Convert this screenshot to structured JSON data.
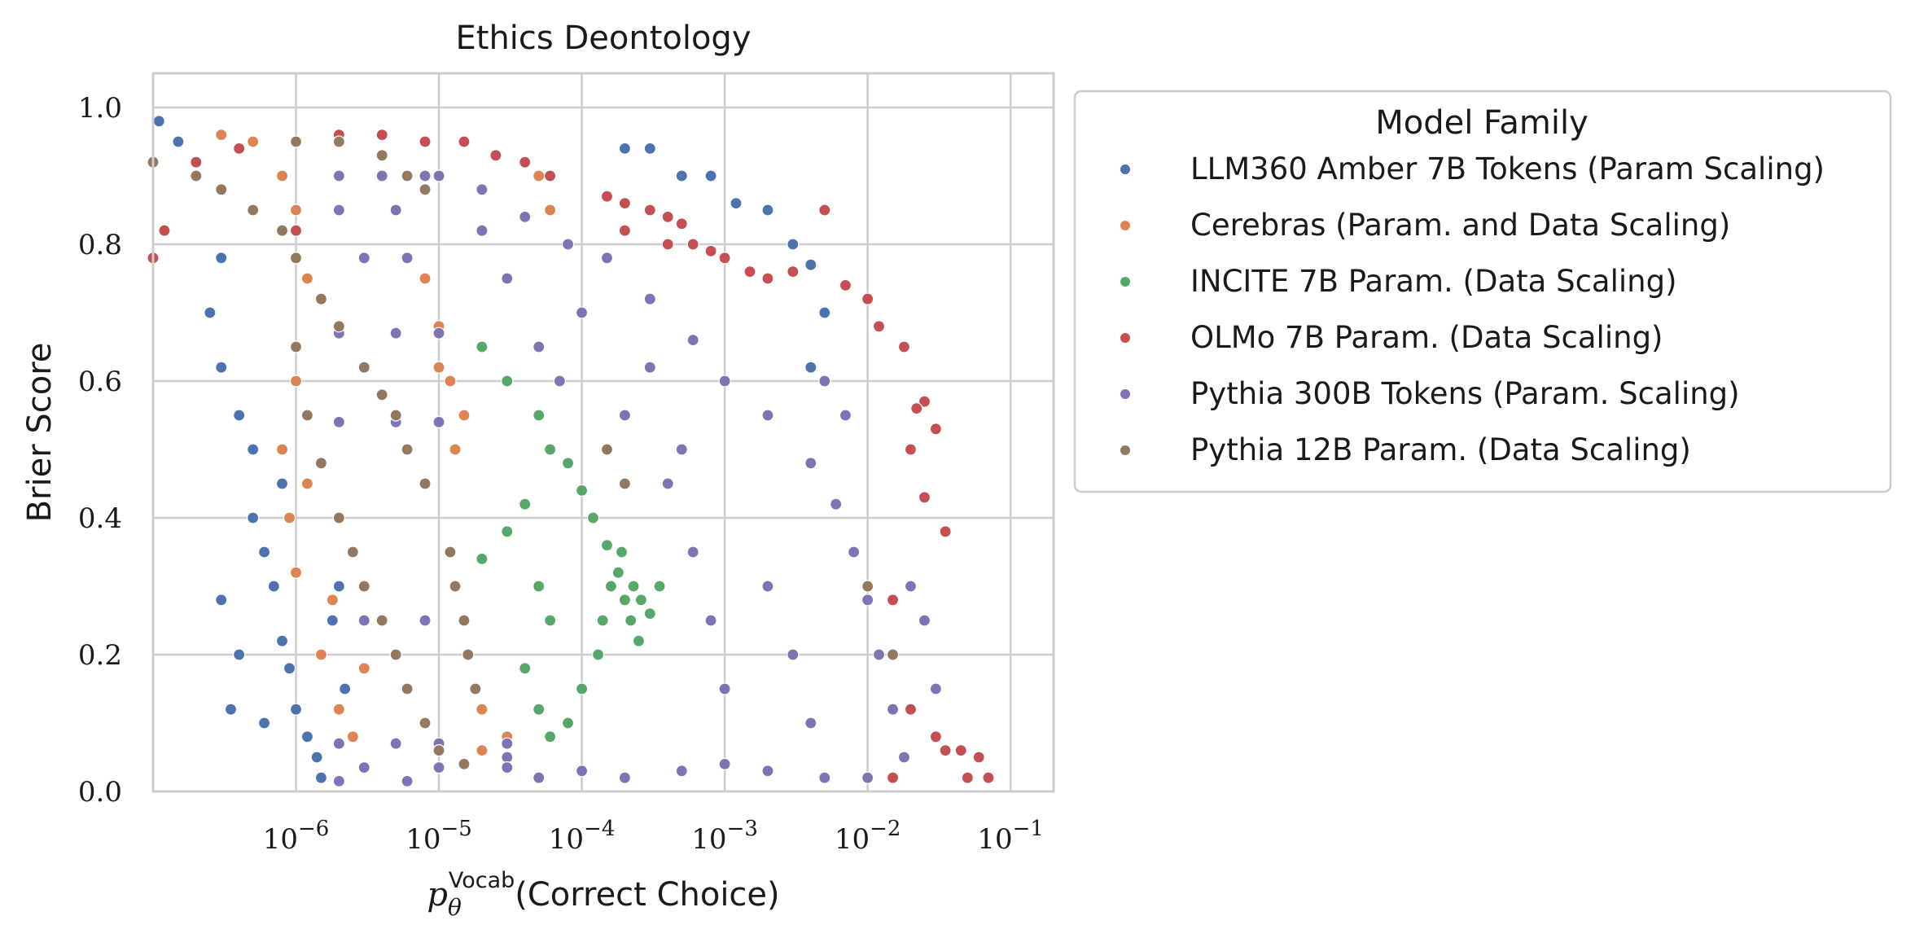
{
  "chart_data": {
    "type": "scatter",
    "title": "Ethics Deontology",
    "xlabel": {
      "main": "p",
      "sub": "θ",
      "sup": "Vocab",
      "rest": "(Correct Choice)"
    },
    "ylabel": "Brier Score",
    "x_scale": "log",
    "xlim": [
      1e-07,
      0.2
    ],
    "ylim": [
      0.0,
      1.05
    ],
    "x_ticks": [
      {
        "value": 1e-06,
        "base": "10",
        "exp": "−6"
      },
      {
        "value": 1e-05,
        "base": "10",
        "exp": "−5"
      },
      {
        "value": 0.0001,
        "base": "10",
        "exp": "−4"
      },
      {
        "value": 0.001,
        "base": "10",
        "exp": "−3"
      },
      {
        "value": 0.01,
        "base": "10",
        "exp": "−2"
      },
      {
        "value": 0.1,
        "base": "10",
        "exp": "−1"
      }
    ],
    "y_ticks": [
      {
        "value": 0.0,
        "label": "0.0"
      },
      {
        "value": 0.2,
        "label": "0.2"
      },
      {
        "value": 0.4,
        "label": "0.4"
      },
      {
        "value": 0.6,
        "label": "0.6"
      },
      {
        "value": 0.8,
        "label": "0.8"
      },
      {
        "value": 1.0,
        "label": "1.0"
      }
    ],
    "grid": true,
    "legend": {
      "title": "Model Family",
      "placement": "outside-right-top"
    },
    "series": [
      {
        "name": "LLM360 Amber 7B Tokens (Param Scaling)",
        "color": "#4c72b0",
        "points": [
          [
            1.1e-07,
            0.98
          ],
          [
            1.5e-07,
            0.95
          ],
          [
            2e-07,
            0.9
          ],
          [
            3e-07,
            0.78
          ],
          [
            2.5e-07,
            0.7
          ],
          [
            3e-07,
            0.62
          ],
          [
            4e-07,
            0.55
          ],
          [
            5e-07,
            0.5
          ],
          [
            5e-07,
            0.4
          ],
          [
            6e-07,
            0.35
          ],
          [
            7e-07,
            0.3
          ],
          [
            8e-07,
            0.22
          ],
          [
            9e-07,
            0.18
          ],
          [
            1e-06,
            0.12
          ],
          [
            1.2e-06,
            0.08
          ],
          [
            1.4e-06,
            0.05
          ],
          [
            1.5e-06,
            0.02
          ],
          [
            2e-06,
            0.3
          ],
          [
            2.2e-06,
            0.15
          ],
          [
            3e-07,
            0.28
          ],
          [
            3.5e-07,
            0.12
          ],
          [
            4e-07,
            0.2
          ],
          [
            6e-07,
            0.1
          ],
          [
            1.8e-06,
            0.25
          ],
          [
            8e-07,
            0.45
          ],
          [
            0.0002,
            0.94
          ],
          [
            0.0003,
            0.94
          ],
          [
            0.0005,
            0.9
          ],
          [
            0.0008,
            0.9
          ],
          [
            0.0012,
            0.86
          ],
          [
            0.002,
            0.85
          ],
          [
            0.003,
            0.8
          ],
          [
            0.004,
            0.77
          ],
          [
            0.005,
            0.7
          ],
          [
            0.004,
            0.62
          ]
        ]
      },
      {
        "name": "Cerebras (Param. and Data Scaling)",
        "color": "#dd8452",
        "points": [
          [
            3e-07,
            0.96
          ],
          [
            5e-07,
            0.95
          ],
          [
            8e-07,
            0.9
          ],
          [
            1e-06,
            0.85
          ],
          [
            1.2e-06,
            0.75
          ],
          [
            1e-06,
            0.6
          ],
          [
            8e-07,
            0.5
          ],
          [
            9e-07,
            0.4
          ],
          [
            1e-06,
            0.32
          ],
          [
            1.5e-06,
            0.2
          ],
          [
            2e-06,
            0.12
          ],
          [
            2.5e-06,
            0.08
          ],
          [
            3e-06,
            0.18
          ],
          [
            1.8e-06,
            0.28
          ],
          [
            1.2e-06,
            0.45
          ],
          [
            8e-06,
            0.75
          ],
          [
            1e-05,
            0.68
          ],
          [
            1.2e-05,
            0.6
          ],
          [
            1.5e-05,
            0.55
          ],
          [
            1.3e-05,
            0.5
          ],
          [
            1e-05,
            0.62
          ],
          [
            2e-05,
            0.12
          ],
          [
            3e-05,
            0.08
          ],
          [
            2e-05,
            0.06
          ],
          [
            5e-05,
            0.9
          ],
          [
            6e-05,
            0.85
          ],
          [
            4e-05,
            0.92
          ]
        ]
      },
      {
        "name": "INCITE 7B Param. (Data Scaling)",
        "color": "#55a868",
        "points": [
          [
            2e-05,
            0.65
          ],
          [
            3e-05,
            0.6
          ],
          [
            5e-05,
            0.55
          ],
          [
            6e-05,
            0.5
          ],
          [
            8e-05,
            0.48
          ],
          [
            4e-05,
            0.42
          ],
          [
            3e-05,
            0.38
          ],
          [
            2e-05,
            0.34
          ],
          [
            5e-05,
            0.3
          ],
          [
            6e-05,
            0.25
          ],
          [
            4e-05,
            0.18
          ],
          [
            5e-05,
            0.12
          ],
          [
            6e-05,
            0.08
          ],
          [
            0.0001,
            0.44
          ],
          [
            0.00012,
            0.4
          ],
          [
            0.00015,
            0.36
          ],
          [
            0.00018,
            0.32
          ],
          [
            0.0002,
            0.28
          ],
          [
            0.00022,
            0.25
          ],
          [
            0.00025,
            0.22
          ],
          [
            0.00013,
            0.2
          ],
          [
            0.00016,
            0.3
          ],
          [
            0.00019,
            0.35
          ],
          [
            0.00023,
            0.3
          ],
          [
            0.00026,
            0.28
          ],
          [
            0.00014,
            0.25
          ],
          [
            0.0001,
            0.15
          ],
          [
            8e-05,
            0.1
          ],
          [
            0.0003,
            0.26
          ],
          [
            0.00035,
            0.3
          ]
        ]
      },
      {
        "name": "OLMo 7B Param. (Data Scaling)",
        "color": "#c44e52",
        "points": [
          [
            1e-07,
            0.78
          ],
          [
            1.2e-07,
            0.82
          ],
          [
            2e-07,
            0.92
          ],
          [
            4e-07,
            0.94
          ],
          [
            2e-06,
            0.96
          ],
          [
            4e-06,
            0.96
          ],
          [
            8e-06,
            0.95
          ],
          [
            1.5e-05,
            0.95
          ],
          [
            2.5e-05,
            0.93
          ],
          [
            4e-05,
            0.92
          ],
          [
            6e-05,
            0.9
          ],
          [
            0.00015,
            0.87
          ],
          [
            0.0002,
            0.86
          ],
          [
            0.0003,
            0.85
          ],
          [
            0.0004,
            0.84
          ],
          [
            0.0005,
            0.83
          ],
          [
            0.0006,
            0.8
          ],
          [
            0.0008,
            0.79
          ],
          [
            0.001,
            0.78
          ],
          [
            0.0015,
            0.76
          ],
          [
            0.002,
            0.75
          ],
          [
            0.003,
            0.76
          ],
          [
            0.005,
            0.85
          ],
          [
            0.007,
            0.74
          ],
          [
            0.01,
            0.72
          ],
          [
            0.012,
            0.68
          ],
          [
            0.018,
            0.65
          ],
          [
            0.025,
            0.57
          ],
          [
            0.022,
            0.56
          ],
          [
            0.03,
            0.53
          ],
          [
            0.02,
            0.5
          ],
          [
            0.025,
            0.43
          ],
          [
            0.035,
            0.38
          ],
          [
            0.015,
            0.28
          ],
          [
            0.02,
            0.12
          ],
          [
            0.03,
            0.08
          ],
          [
            0.035,
            0.06
          ],
          [
            0.045,
            0.06
          ],
          [
            0.06,
            0.05
          ],
          [
            0.05,
            0.02
          ],
          [
            0.07,
            0.02
          ],
          [
            0.015,
            0.02
          ],
          [
            0.0002,
            0.82
          ],
          [
            0.0004,
            0.8
          ],
          [
            1e-06,
            0.82
          ]
        ]
      },
      {
        "name": "Pythia 300B Tokens (Param. Scaling)",
        "color": "#8172b3",
        "points": [
          [
            1e-05,
            0.9
          ],
          [
            2e-05,
            0.88
          ],
          [
            4e-05,
            0.84
          ],
          [
            8e-05,
            0.8
          ],
          [
            0.00015,
            0.78
          ],
          [
            0.0003,
            0.72
          ],
          [
            0.0006,
            0.66
          ],
          [
            0.001,
            0.6
          ],
          [
            0.002,
            0.55
          ],
          [
            0.004,
            0.48
          ],
          [
            0.006,
            0.42
          ],
          [
            0.008,
            0.35
          ],
          [
            0.01,
            0.28
          ],
          [
            0.012,
            0.2
          ],
          [
            0.015,
            0.12
          ],
          [
            0.018,
            0.05
          ],
          [
            0.01,
            0.02
          ],
          [
            0.005,
            0.02
          ],
          [
            0.002,
            0.03
          ],
          [
            0.001,
            0.04
          ],
          [
            0.0005,
            0.03
          ],
          [
            0.0002,
            0.02
          ],
          [
            0.0001,
            0.03
          ],
          [
            5e-05,
            0.02
          ],
          [
            3e-05,
            0.05
          ],
          [
            0.0002,
            0.55
          ],
          [
            0.0004,
            0.45
          ],
          [
            0.0006,
            0.35
          ],
          [
            0.0008,
            0.25
          ],
          [
            0.001,
            0.15
          ],
          [
            0.0003,
            0.62
          ],
          [
            0.0005,
            0.5
          ],
          [
            0.002,
            0.3
          ],
          [
            0.003,
            0.2
          ],
          [
            0.004,
            0.1
          ],
          [
            0.0001,
            0.7
          ],
          [
            7e-05,
            0.6
          ],
          [
            5e-05,
            0.65
          ],
          [
            3e-05,
            0.75
          ],
          [
            2e-05,
            0.82
          ],
          [
            0.025,
            0.25
          ],
          [
            0.02,
            0.3
          ],
          [
            0.03,
            0.15
          ],
          [
            0.007,
            0.55
          ],
          [
            0.005,
            0.6
          ],
          [
            2e-06,
            0.9
          ],
          [
            4e-06,
            0.9
          ],
          [
            8e-06,
            0.9
          ],
          [
            2e-06,
            0.85
          ],
          [
            5e-06,
            0.85
          ],
          [
            1e-06,
            0.78
          ],
          [
            3e-06,
            0.78
          ],
          [
            6e-06,
            0.78
          ],
          [
            2e-06,
            0.67
          ],
          [
            5e-06,
            0.67
          ],
          [
            1e-05,
            0.67
          ],
          [
            2e-06,
            0.54
          ],
          [
            5e-06,
            0.54
          ],
          [
            1e-05,
            0.54
          ],
          [
            3e-06,
            0.25
          ],
          [
            8e-06,
            0.25
          ],
          [
            2e-06,
            0.07
          ],
          [
            5e-06,
            0.07
          ],
          [
            1e-05,
            0.07
          ],
          [
            3e-05,
            0.07
          ],
          [
            3e-06,
            0.035
          ],
          [
            1e-05,
            0.035
          ],
          [
            3e-05,
            0.035
          ],
          [
            2e-06,
            0.015
          ],
          [
            6e-06,
            0.015
          ]
        ]
      },
      {
        "name": "Pythia 12B Param. (Data Scaling)",
        "color": "#937860",
        "points": [
          [
            1e-07,
            0.92
          ],
          [
            2e-07,
            0.9
          ],
          [
            3e-07,
            0.88
          ],
          [
            5e-07,
            0.85
          ],
          [
            8e-07,
            0.82
          ],
          [
            1e-06,
            0.78
          ],
          [
            1.5e-06,
            0.72
          ],
          [
            2e-06,
            0.68
          ],
          [
            3e-06,
            0.62
          ],
          [
            4e-06,
            0.58
          ],
          [
            5e-06,
            0.55
          ],
          [
            6e-06,
            0.5
          ],
          [
            8e-06,
            0.45
          ],
          [
            1e-06,
            0.65
          ],
          [
            1.2e-06,
            0.55
          ],
          [
            1.5e-06,
            0.48
          ],
          [
            2e-06,
            0.4
          ],
          [
            2.5e-06,
            0.35
          ],
          [
            3e-06,
            0.3
          ],
          [
            4e-06,
            0.25
          ],
          [
            5e-06,
            0.2
          ],
          [
            6e-06,
            0.15
          ],
          [
            8e-06,
            0.1
          ],
          [
            1e-05,
            0.06
          ],
          [
            1.5e-05,
            0.04
          ],
          [
            1.2e-05,
            0.35
          ],
          [
            1.3e-05,
            0.3
          ],
          [
            1.5e-05,
            0.25
          ],
          [
            1.6e-05,
            0.2
          ],
          [
            1.8e-05,
            0.15
          ],
          [
            1e-06,
            0.95
          ],
          [
            2e-06,
            0.95
          ],
          [
            4e-06,
            0.93
          ],
          [
            6e-06,
            0.9
          ],
          [
            8e-06,
            0.88
          ],
          [
            0.00015,
            0.5
          ],
          [
            0.0002,
            0.45
          ],
          [
            0.015,
            0.2
          ],
          [
            0.01,
            0.3
          ]
        ]
      }
    ]
  }
}
